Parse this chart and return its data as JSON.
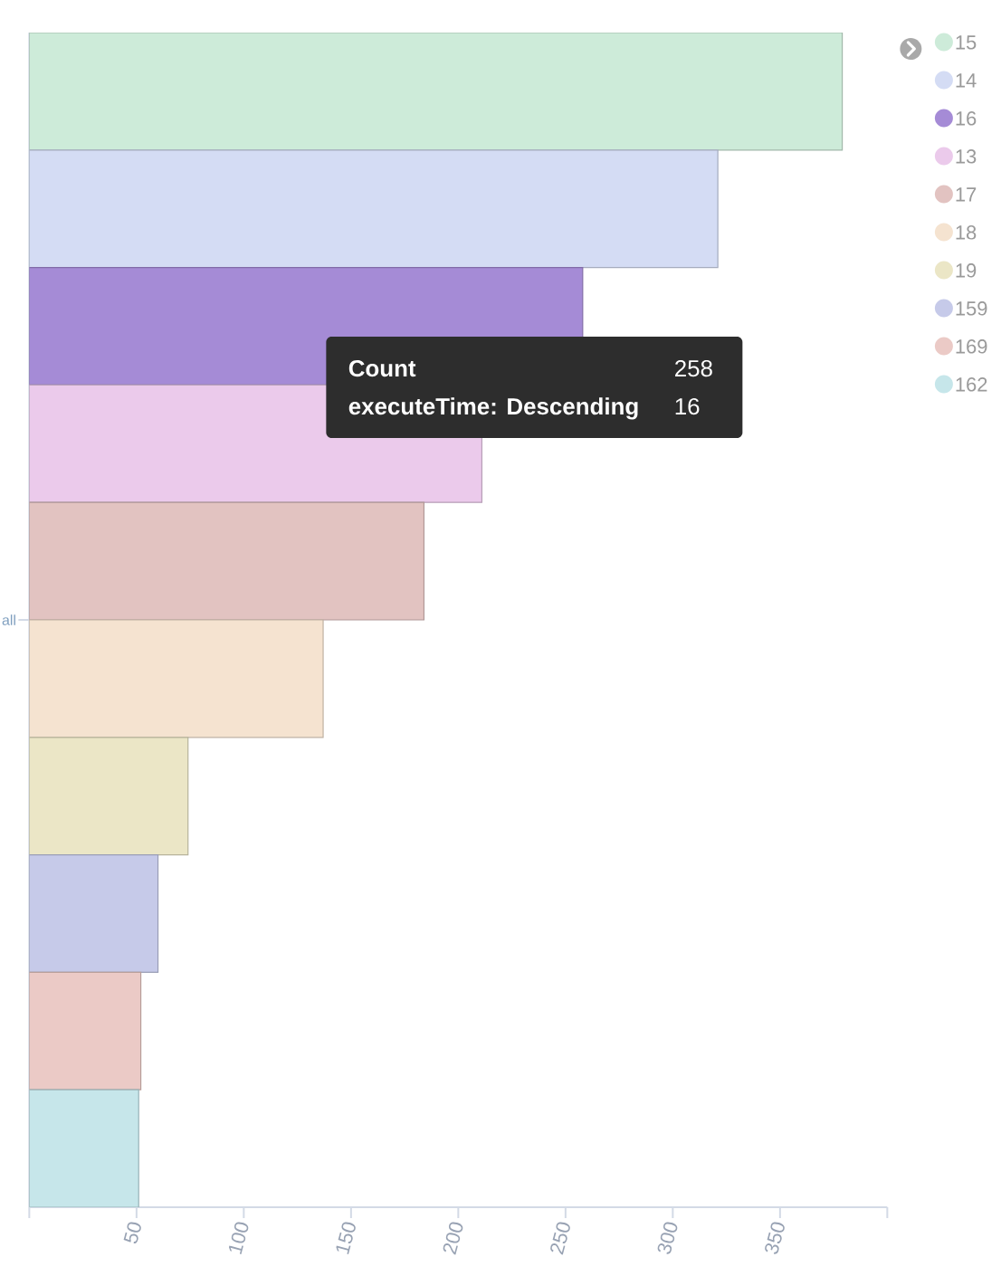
{
  "chart_data": {
    "type": "bar",
    "orientation": "horizontal",
    "categories": [
      "all"
    ],
    "series": [
      {
        "name": "15",
        "color": "#cdebd9",
        "values": [
          379
        ]
      },
      {
        "name": "14",
        "color": "#d4dcf4",
        "values": [
          321
        ]
      },
      {
        "name": "16",
        "color": "#a58bd6",
        "values": [
          258
        ]
      },
      {
        "name": "13",
        "color": "#ebcaeb",
        "values": [
          211
        ]
      },
      {
        "name": "17",
        "color": "#e2c3c1",
        "values": [
          184
        ]
      },
      {
        "name": "18",
        "color": "#f5e3d0",
        "values": [
          137
        ]
      },
      {
        "name": "19",
        "color": "#ebe6c6",
        "values": [
          74
        ]
      },
      {
        "name": "159",
        "color": "#c6cae9",
        "values": [
          60
        ]
      },
      {
        "name": "169",
        "color": "#ebcac6",
        "values": [
          52
        ]
      },
      {
        "name": "162",
        "color": "#c6e6ea",
        "values": [
          51
        ]
      }
    ],
    "xlim": [
      0,
      400
    ],
    "xticks": [
      {
        "value": 0,
        "label": null
      },
      50,
      100,
      150,
      200,
      250,
      300,
      350,
      {
        "value": 400,
        "label": null
      }
    ],
    "legend": "top right",
    "annotations": [
      "Count",
      "258",
      "executeTime: Descending",
      "16"
    ]
  }
}
